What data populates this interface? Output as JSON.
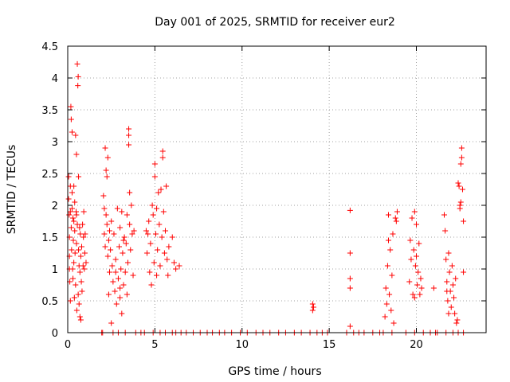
{
  "chart_data": {
    "type": "scatter",
    "title": "Day 001 of 2025, SRMTID for receiver eur2",
    "xlabel": "GPS time / hours",
    "ylabel": "SRMTID / TECUs",
    "xlim": [
      0,
      24
    ],
    "ylim": [
      0,
      4.5
    ],
    "xticks": [
      0,
      5,
      10,
      15,
      20
    ],
    "xtick_labels": [
      "0",
      "5",
      "10",
      "15",
      "20"
    ],
    "yticks": [
      0,
      0.5,
      1,
      1.5,
      2,
      2.5,
      3,
      3.5,
      4,
      4.5
    ],
    "ytick_labels": [
      "0",
      "0.5",
      "1",
      "1.5",
      "2",
      "2.5",
      "3",
      "3.5",
      "4",
      "4.5"
    ],
    "grid": true,
    "marker": "+",
    "series": [
      {
        "name": "SRMTID",
        "color": "#ff0000",
        "points": [
          [
            0.05,
            2.45
          ],
          [
            0.05,
            2.1
          ],
          [
            0.08,
            1.85
          ],
          [
            0.1,
            1.5
          ],
          [
            0.1,
            1.2
          ],
          [
            0.12,
            0.8
          ],
          [
            0.15,
            2.3
          ],
          [
            0.15,
            1.9
          ],
          [
            0.18,
            3.55
          ],
          [
            0.2,
            3.35
          ],
          [
            0.2,
            1.65
          ],
          [
            0.22,
            1.3
          ],
          [
            0.25,
            3.15
          ],
          [
            0.25,
            2.2
          ],
          [
            0.28,
            1.0
          ],
          [
            0.3,
            1.8
          ],
          [
            0.3,
            0.85
          ],
          [
            0.32,
            1.45
          ],
          [
            0.35,
            1.75
          ],
          [
            0.35,
            1.1
          ],
          [
            0.38,
            0.55
          ],
          [
            0.4,
            2.05
          ],
          [
            0.4,
            1.6
          ],
          [
            0.42,
            1.25
          ],
          [
            0.45,
            3.1
          ],
          [
            0.45,
            0.75
          ],
          [
            0.48,
            1.9
          ],
          [
            0.5,
            2.8
          ],
          [
            0.5,
            1.4
          ],
          [
            0.52,
            0.35
          ],
          [
            0.55,
            4.22
          ],
          [
            0.55,
            1.7
          ],
          [
            0.58,
            3.88
          ],
          [
            0.6,
            4.02
          ],
          [
            0.6,
            0.6
          ],
          [
            0.62,
            2.45
          ],
          [
            0.65,
            1.05
          ],
          [
            0.65,
            0.45
          ],
          [
            0.68,
            1.65
          ],
          [
            0.7,
            0.95
          ],
          [
            0.7,
            0.25
          ],
          [
            0.72,
            1.55
          ],
          [
            0.75,
            1.2
          ],
          [
            0.75,
            0.2
          ],
          [
            0.78,
            0.8
          ],
          [
            0.8,
            1.35
          ],
          [
            0.82,
            0.65
          ],
          [
            0.85,
            1.7
          ],
          [
            0.88,
            1.05
          ],
          [
            0.9,
            1.5
          ],
          [
            0.92,
            1.9
          ],
          [
            0.95,
            1.0
          ],
          [
            0.98,
            1.25
          ],
          [
            1.0,
            1.55
          ],
          [
            1.05,
            1.1
          ],
          [
            0.1,
            1.0
          ],
          [
            0.15,
            0.5
          ],
          [
            0.25,
            1.95
          ],
          [
            0.35,
            2.3
          ],
          [
            0.5,
            1.85
          ],
          [
            0.62,
            1.3
          ],
          [
            1.95,
            0.0
          ],
          [
            2.05,
            2.15
          ],
          [
            2.1,
            1.95
          ],
          [
            2.1,
            1.55
          ],
          [
            2.15,
            2.9
          ],
          [
            2.15,
            1.35
          ],
          [
            2.2,
            2.55
          ],
          [
            2.2,
            1.85
          ],
          [
            2.25,
            2.45
          ],
          [
            2.25,
            1.7
          ],
          [
            2.3,
            2.75
          ],
          [
            2.3,
            1.2
          ],
          [
            2.35,
            1.45
          ],
          [
            2.35,
            0.6
          ],
          [
            2.4,
            1.6
          ],
          [
            2.4,
            0.95
          ],
          [
            2.45,
            1.3
          ],
          [
            2.5,
            0.15
          ],
          [
            2.5,
            1.75
          ],
          [
            2.55,
            1.05
          ],
          [
            2.6,
            0.8
          ],
          [
            2.65,
            1.55
          ],
          [
            2.7,
            0.65
          ],
          [
            2.75,
            1.15
          ],
          [
            2.8,
            0.45
          ],
          [
            2.85,
            1.95
          ],
          [
            2.9,
            0.85
          ],
          [
            2.95,
            1.35
          ],
          [
            3.0,
            0.55
          ],
          [
            3.0,
            1.65
          ],
          [
            3.05,
            1.0
          ],
          [
            3.1,
            0.3
          ],
          [
            3.1,
            1.9
          ],
          [
            3.15,
            1.25
          ],
          [
            3.2,
            0.75
          ],
          [
            3.25,
            1.5
          ],
          [
            3.3,
            0.95
          ],
          [
            3.35,
            1.4
          ],
          [
            3.4,
            1.85
          ],
          [
            3.45,
            1.1
          ],
          [
            3.5,
            3.2
          ],
          [
            3.5,
            3.1
          ],
          [
            3.5,
            2.95
          ],
          [
            3.55,
            2.2
          ],
          [
            3.55,
            1.7
          ],
          [
            3.6,
            1.3
          ],
          [
            3.65,
            2.0
          ],
          [
            3.7,
            1.55
          ],
          [
            3.75,
            0.9
          ],
          [
            3.8,
            1.6
          ],
          [
            2.0,
            0.0
          ],
          [
            2.6,
            0.0
          ],
          [
            2.9,
            0.0
          ],
          [
            3.3,
            0.0
          ],
          [
            3.9,
            0.0
          ],
          [
            3.0,
            0.7
          ],
          [
            3.2,
            1.45
          ],
          [
            3.4,
            0.6
          ],
          [
            2.75,
            0.95
          ],
          [
            4.2,
            0.0
          ],
          [
            4.4,
            0.0
          ],
          [
            4.5,
            1.6
          ],
          [
            4.55,
            1.25
          ],
          [
            4.6,
            1.55
          ],
          [
            4.65,
            1.75
          ],
          [
            4.7,
            0.95
          ],
          [
            4.75,
            1.4
          ],
          [
            4.8,
            0.75
          ],
          [
            4.85,
            2.0
          ],
          [
            4.9,
            1.85
          ],
          [
            4.95,
            1.1
          ],
          [
            5.0,
            2.65
          ],
          [
            5.0,
            2.45
          ],
          [
            5.05,
            1.55
          ],
          [
            5.1,
            1.95
          ],
          [
            5.1,
            0.9
          ],
          [
            5.15,
            1.3
          ],
          [
            5.2,
            2.2
          ],
          [
            5.25,
            1.7
          ],
          [
            5.3,
            1.05
          ],
          [
            5.35,
            2.25
          ],
          [
            5.4,
            1.5
          ],
          [
            5.45,
            2.85
          ],
          [
            5.45,
            2.75
          ],
          [
            5.5,
            1.9
          ],
          [
            5.55,
            1.25
          ],
          [
            5.6,
            1.6
          ],
          [
            5.65,
            2.3
          ],
          [
            5.7,
            1.15
          ],
          [
            5.75,
            0.9
          ],
          [
            5.8,
            1.35
          ],
          [
            6.0,
            1.5
          ],
          [
            6.1,
            1.1
          ],
          [
            6.2,
            1.0
          ],
          [
            6.4,
            1.05
          ],
          [
            4.9,
            0.0
          ],
          [
            5.3,
            0.0
          ],
          [
            5.6,
            0.0
          ],
          [
            6.0,
            0.0
          ],
          [
            6.2,
            0.0
          ],
          [
            6.5,
            0.0
          ],
          [
            6.8,
            0.0
          ],
          [
            7.2,
            0.0
          ],
          [
            7.6,
            0.0
          ],
          [
            8.0,
            0.0
          ],
          [
            8.3,
            0.0
          ],
          [
            8.7,
            0.0
          ],
          [
            9.0,
            0.0
          ],
          [
            9.4,
            0.0
          ],
          [
            9.9,
            0.0
          ],
          [
            10.3,
            0.0
          ],
          [
            10.8,
            0.0
          ],
          [
            11.2,
            0.0
          ],
          [
            11.6,
            0.0
          ],
          [
            12.1,
            0.0
          ],
          [
            12.5,
            0.0
          ],
          [
            13.0,
            0.0
          ],
          [
            13.4,
            0.0
          ],
          [
            13.9,
            0.0
          ],
          [
            14.3,
            0.0
          ],
          [
            14.6,
            0.0
          ],
          [
            14.9,
            0.0
          ],
          [
            14.05,
            0.35
          ],
          [
            14.05,
            0.45
          ],
          [
            14.1,
            0.4
          ],
          [
            16.0,
            0.0
          ],
          [
            16.2,
            1.92
          ],
          [
            16.2,
            1.25
          ],
          [
            16.2,
            0.85
          ],
          [
            16.2,
            0.7
          ],
          [
            16.2,
            0.1
          ],
          [
            16.4,
            0.0
          ],
          [
            16.7,
            0.0
          ],
          [
            17.0,
            0.0
          ],
          [
            17.5,
            0.0
          ],
          [
            17.9,
            0.0
          ],
          [
            18.1,
            0.0
          ],
          [
            18.2,
            0.25
          ],
          [
            18.25,
            0.7
          ],
          [
            18.3,
            0.45
          ],
          [
            18.35,
            1.05
          ],
          [
            18.4,
            1.45
          ],
          [
            18.4,
            1.85
          ],
          [
            18.45,
            0.6
          ],
          [
            18.5,
            1.3
          ],
          [
            18.55,
            0.35
          ],
          [
            18.6,
            0.9
          ],
          [
            18.65,
            1.55
          ],
          [
            18.7,
            0.15
          ],
          [
            18.8,
            1.8
          ],
          [
            18.85,
            1.75
          ],
          [
            18.9,
            1.9
          ],
          [
            18.6,
            0.0
          ],
          [
            19.4,
            0.0
          ],
          [
            19.6,
            0.8
          ],
          [
            19.65,
            1.45
          ],
          [
            19.7,
            1.15
          ],
          [
            19.75,
            1.8
          ],
          [
            19.8,
            0.6
          ],
          [
            19.85,
            1.3
          ],
          [
            19.9,
            1.9
          ],
          [
            19.9,
            0.55
          ],
          [
            19.95,
            1.05
          ],
          [
            20.0,
            1.7
          ],
          [
            20.0,
            1.2
          ],
          [
            20.05,
            0.75
          ],
          [
            20.1,
            0.95
          ],
          [
            20.15,
            1.4
          ],
          [
            20.2,
            0.6
          ],
          [
            20.25,
            0.85
          ],
          [
            20.3,
            0.7
          ],
          [
            19.9,
            0.0
          ],
          [
            20.4,
            0.0
          ],
          [
            20.8,
            0.0
          ],
          [
            21.2,
            0.0
          ],
          [
            21.0,
            0.7
          ],
          [
            21.1,
            0.0
          ],
          [
            21.6,
            1.85
          ],
          [
            21.65,
            1.6
          ],
          [
            21.7,
            1.15
          ],
          [
            21.75,
            0.8
          ],
          [
            21.8,
            0.5
          ],
          [
            21.85,
            0.3
          ],
          [
            21.9,
            0.95
          ],
          [
            21.95,
            0.65
          ],
          [
            22.0,
            0.4
          ],
          [
            22.05,
            1.05
          ],
          [
            22.1,
            0.75
          ],
          [
            22.15,
            0.55
          ],
          [
            22.2,
            0.3
          ],
          [
            22.25,
            0.85
          ],
          [
            22.3,
            0.15
          ],
          [
            22.35,
            0.2
          ],
          [
            22.4,
            2.35
          ],
          [
            22.45,
            2.3
          ],
          [
            22.5,
            2.0
          ],
          [
            22.5,
            1.95
          ],
          [
            22.55,
            2.65
          ],
          [
            22.55,
            2.05
          ],
          [
            22.6,
            2.9
          ],
          [
            22.6,
            2.75
          ],
          [
            22.65,
            2.25
          ],
          [
            22.7,
            1.75
          ],
          [
            22.7,
            0.95
          ],
          [
            21.7,
            0.0
          ],
          [
            22.1,
            0.0
          ],
          [
            22.4,
            0.0
          ],
          [
            22.7,
            0.0
          ],
          [
            21.75,
            0.65
          ],
          [
            21.85,
            1.25
          ]
        ]
      }
    ]
  }
}
